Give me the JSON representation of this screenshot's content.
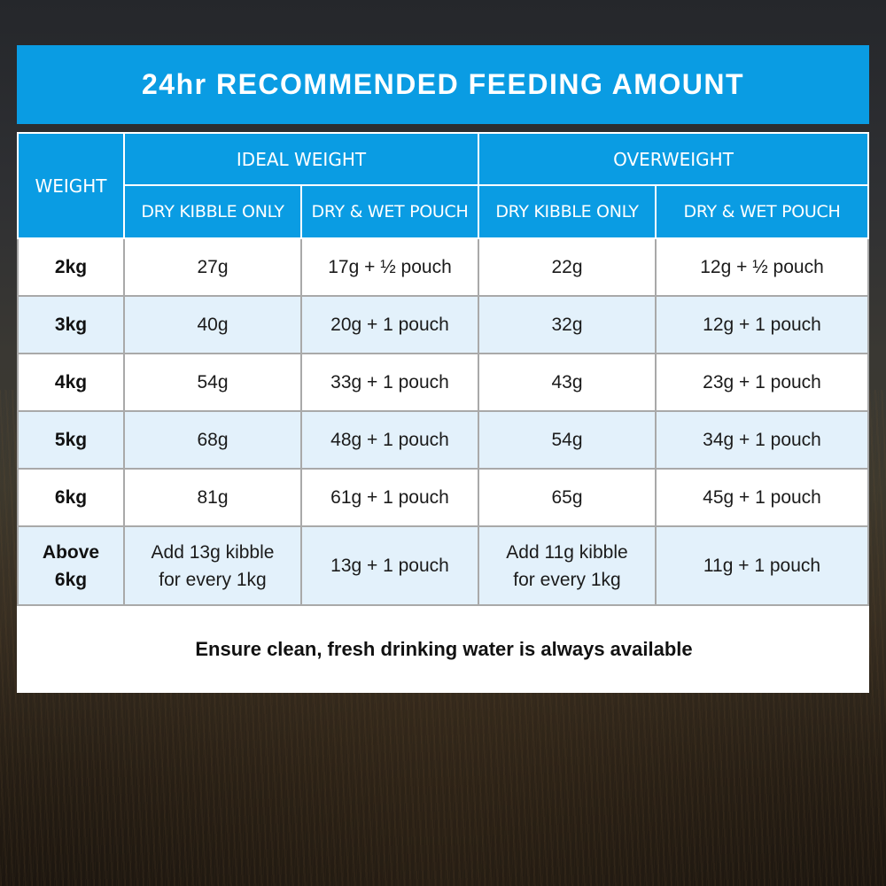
{
  "title": "24hr RECOMMENDED FEEDING AMOUNT",
  "headers": {
    "weight": "WEIGHT",
    "ideal": "IDEAL WEIGHT",
    "overweight": "OVERWEIGHT",
    "dry_kibble_only": "DRY KIBBLE ONLY",
    "dry_wet_pouch": "DRY & WET POUCH"
  },
  "rows": [
    {
      "weight": "2kg",
      "ideal_dry": "27g",
      "ideal_wet": "17g + ½ pouch",
      "over_dry": "22g",
      "over_wet": "12g + ½ pouch"
    },
    {
      "weight": "3kg",
      "ideal_dry": "40g",
      "ideal_wet": "20g + 1 pouch",
      "over_dry": "32g",
      "over_wet": "12g + 1 pouch"
    },
    {
      "weight": "4kg",
      "ideal_dry": "54g",
      "ideal_wet": "33g + 1 pouch",
      "over_dry": "43g",
      "over_wet": "23g + 1 pouch"
    },
    {
      "weight": "5kg",
      "ideal_dry": "68g",
      "ideal_wet": "48g + 1 pouch",
      "over_dry": "54g",
      "over_wet": "34g + 1 pouch"
    },
    {
      "weight": "6kg",
      "ideal_dry": "81g",
      "ideal_wet": "61g + 1 pouch",
      "over_dry": "65g",
      "over_wet": "45g + 1 pouch"
    },
    {
      "weight_line1": "Above",
      "weight_line2": "6kg",
      "ideal_dry_line1": "Add 13g kibble",
      "ideal_dry_line2": "for every 1kg",
      "ideal_wet": "13g + 1 pouch",
      "over_dry_line1": "Add 11g kibble",
      "over_dry_line2": "for every 1kg",
      "over_wet": "11g + 1 pouch"
    }
  ],
  "footer": "Ensure clean, fresh drinking water is always available",
  "colors": {
    "header_blue": "#0a9ce3",
    "alt_row": "#e3f1fb"
  }
}
